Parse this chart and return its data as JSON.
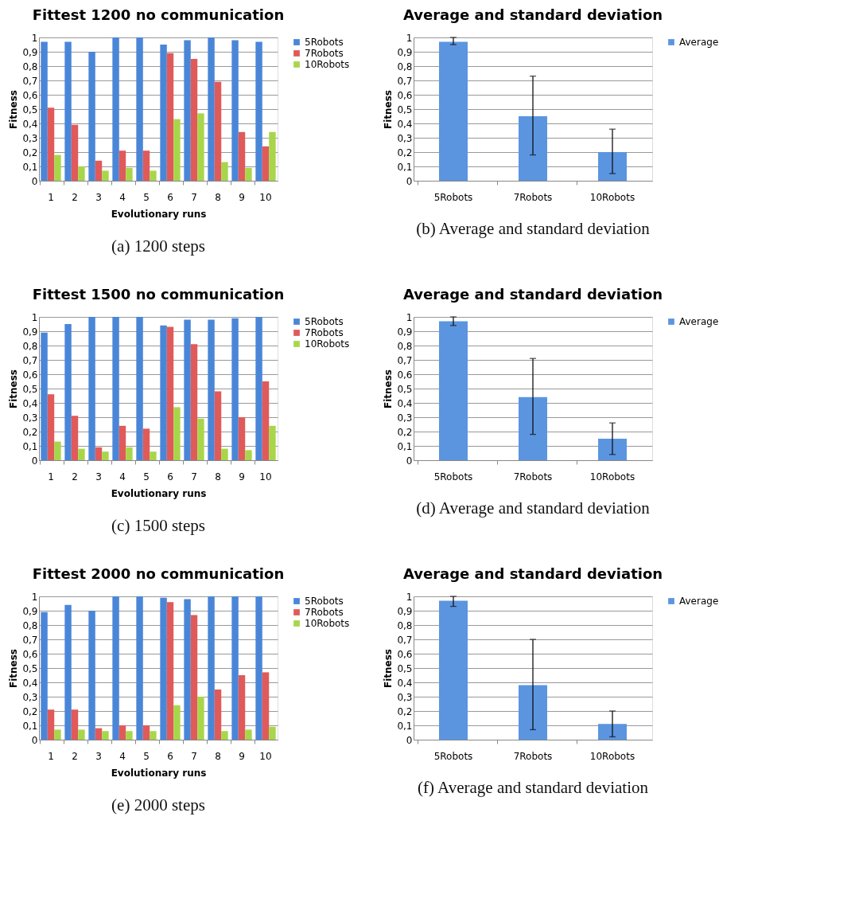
{
  "chart_data": [
    {
      "type": "bar",
      "title": "Fittest 1200 no communication",
      "xlabel": "Evolutionary runs",
      "ylabel": "Fitness",
      "categories": [
        "1",
        "2",
        "3",
        "4",
        "5",
        "6",
        "7",
        "8",
        "9",
        "10"
      ],
      "series": [
        {
          "name": "5Robots",
          "color": "#4a86d8",
          "values": [
            0.97,
            0.97,
            0.9,
            1.0,
            1.0,
            0.95,
            0.98,
            1.0,
            0.98,
            0.97
          ]
        },
        {
          "name": "7Robots",
          "color": "#e05a5a",
          "values": [
            0.51,
            0.39,
            0.14,
            0.21,
            0.21,
            0.89,
            0.85,
            0.69,
            0.34,
            0.24
          ]
        },
        {
          "name": "10Robots",
          "color": "#a8d64a",
          "values": [
            0.18,
            0.1,
            0.07,
            0.09,
            0.07,
            0.43,
            0.47,
            0.13,
            0.09,
            0.34
          ]
        }
      ],
      "ylim": [
        0,
        1
      ],
      "yticks": [
        0,
        {
          "value": 0.1,
          "label": "0,1"
        },
        {
          "value": 0.2,
          "label": "0,2"
        },
        {
          "value": 0.3,
          "label": "0,3"
        },
        {
          "value": 0.4,
          "label": "0,4"
        },
        {
          "value": 0.5,
          "label": "0,5"
        },
        {
          "value": 0.6,
          "label": "0,6"
        },
        {
          "value": 0.7,
          "label": "0,7"
        },
        {
          "value": 0.8,
          "label": "0,8"
        },
        {
          "value": 0.9,
          "label": "0,9"
        },
        1
      ],
      "grid": "y",
      "legend": "right",
      "annotations": [
        "(a)  1200 steps"
      ]
    },
    {
      "type": "bar",
      "title": "Average and standard deviation",
      "ylabel": "Fitness",
      "categories": [
        "5Robots",
        "7Robots",
        "10Robots"
      ],
      "series": [
        {
          "name": "Average",
          "color": "#5b95e0",
          "values": [
            0.97,
            0.45,
            0.2
          ],
          "errors": [
            [
              0.95,
              1.0
            ],
            [
              0.18,
              0.73
            ],
            [
              0.05,
              0.36
            ]
          ]
        }
      ],
      "ylim": [
        0,
        1
      ],
      "yticks": [
        0,
        {
          "value": 0.1,
          "label": "0,1"
        },
        {
          "value": 0.2,
          "label": "0,2"
        },
        {
          "value": 0.3,
          "label": "0,3"
        },
        {
          "value": 0.4,
          "label": "0,4"
        },
        {
          "value": 0.5,
          "label": "0,5"
        },
        {
          "value": 0.6,
          "label": "0,6"
        },
        {
          "value": 0.7,
          "label": "0,7"
        },
        {
          "value": 0.8,
          "label": "0,8"
        },
        {
          "value": 0.9,
          "label": "0,9"
        },
        1
      ],
      "grid": "y",
      "legend": "right",
      "annotations": [
        "(b)  Average and standard deviation"
      ]
    },
    {
      "type": "bar",
      "title": "Fittest 1500 no communication",
      "xlabel": "Evolutionary runs",
      "ylabel": "Fitness",
      "categories": [
        "1",
        "2",
        "3",
        "4",
        "5",
        "6",
        "7",
        "8",
        "9",
        "10"
      ],
      "series": [
        {
          "name": "5Robots",
          "color": "#4a86d8",
          "values": [
            0.89,
            0.95,
            1.0,
            1.0,
            1.0,
            0.94,
            0.98,
            0.98,
            0.99,
            1.0
          ]
        },
        {
          "name": "7Robots",
          "color": "#e05a5a",
          "values": [
            0.46,
            0.31,
            0.09,
            0.24,
            0.22,
            0.93,
            0.81,
            0.48,
            0.3,
            0.55
          ]
        },
        {
          "name": "10Robots",
          "color": "#a8d64a",
          "values": [
            0.13,
            0.08,
            0.06,
            0.09,
            0.06,
            0.37,
            0.29,
            0.08,
            0.07,
            0.24
          ]
        }
      ],
      "ylim": [
        0,
        1
      ],
      "yticks": [
        0,
        {
          "value": 0.1,
          "label": "0,1"
        },
        {
          "value": 0.2,
          "label": "0,2"
        },
        {
          "value": 0.3,
          "label": "0,3"
        },
        {
          "value": 0.4,
          "label": "0,4"
        },
        {
          "value": 0.5,
          "label": "0,5"
        },
        {
          "value": 0.6,
          "label": "0,6"
        },
        {
          "value": 0.7,
          "label": "0,7"
        },
        {
          "value": 0.8,
          "label": "0,8"
        },
        {
          "value": 0.9,
          "label": "0,9"
        },
        1
      ],
      "grid": "y",
      "legend": "right",
      "annotations": [
        "(c)  1500 steps"
      ]
    },
    {
      "type": "bar",
      "title": "Average and standard deviation",
      "ylabel": "Fitness",
      "categories": [
        "5Robots",
        "7Robots",
        "10Robots"
      ],
      "series": [
        {
          "name": "Average",
          "color": "#5b95e0",
          "values": [
            0.97,
            0.44,
            0.15
          ],
          "errors": [
            [
              0.94,
              1.0
            ],
            [
              0.18,
              0.71
            ],
            [
              0.04,
              0.26
            ]
          ]
        }
      ],
      "ylim": [
        0,
        1
      ],
      "yticks": [
        0,
        {
          "value": 0.1,
          "label": "0,1"
        },
        {
          "value": 0.2,
          "label": "0,2"
        },
        {
          "value": 0.3,
          "label": "0,3"
        },
        {
          "value": 0.4,
          "label": "0,4"
        },
        {
          "value": 0.5,
          "label": "0,5"
        },
        {
          "value": 0.6,
          "label": "0,6"
        },
        {
          "value": 0.7,
          "label": "0,7"
        },
        {
          "value": 0.8,
          "label": "0,8"
        },
        {
          "value": 0.9,
          "label": "0,9"
        },
        1
      ],
      "grid": "y",
      "legend": "right",
      "annotations": [
        "(d)  Average and standard deviation"
      ]
    },
    {
      "type": "bar",
      "title": "Fittest 2000 no communication",
      "xlabel": "Evolutionary runs",
      "ylabel": "Fitness",
      "categories": [
        "1",
        "2",
        "3",
        "4",
        "5",
        "6",
        "7",
        "8",
        "9",
        "10"
      ],
      "series": [
        {
          "name": "5Robots",
          "color": "#4a86d8",
          "values": [
            0.89,
            0.94,
            0.9,
            1.0,
            1.0,
            0.99,
            0.98,
            1.0,
            1.0,
            1.0
          ]
        },
        {
          "name": "7Robots",
          "color": "#e05a5a",
          "values": [
            0.21,
            0.21,
            0.08,
            0.1,
            0.1,
            0.96,
            0.87,
            0.35,
            0.45,
            0.47
          ]
        },
        {
          "name": "10Robots",
          "color": "#a8d64a",
          "values": [
            0.07,
            0.07,
            0.06,
            0.06,
            0.06,
            0.24,
            0.3,
            0.06,
            0.07,
            0.09
          ]
        }
      ],
      "ylim": [
        0,
        1
      ],
      "yticks": [
        0,
        {
          "value": 0.1,
          "label": "0,1"
        },
        {
          "value": 0.2,
          "label": "0,2"
        },
        {
          "value": 0.3,
          "label": "0,3"
        },
        {
          "value": 0.4,
          "label": "0,4"
        },
        {
          "value": 0.5,
          "label": "0,5"
        },
        {
          "value": 0.6,
          "label": "0,6"
        },
        {
          "value": 0.7,
          "label": "0,7"
        },
        {
          "value": 0.8,
          "label": "0,8"
        },
        {
          "value": 0.9,
          "label": "0,9"
        },
        1
      ],
      "grid": "y",
      "legend": "right",
      "annotations": [
        "(e)  2000 steps"
      ]
    },
    {
      "type": "bar",
      "title": "Average and standard deviation",
      "ylabel": "Fitness",
      "categories": [
        "5Robots",
        "7Robots",
        "10Robots"
      ],
      "series": [
        {
          "name": "Average",
          "color": "#5b95e0",
          "values": [
            0.97,
            0.38,
            0.11
          ],
          "errors": [
            [
              0.93,
              1.0
            ],
            [
              0.07,
              0.7
            ],
            [
              0.02,
              0.2
            ]
          ]
        }
      ],
      "ylim": [
        0,
        1
      ],
      "yticks": [
        0,
        {
          "value": 0.1,
          "label": "0,1"
        },
        {
          "value": 0.2,
          "label": "0,2"
        },
        {
          "value": 0.3,
          "label": "0,3"
        },
        {
          "value": 0.4,
          "label": "0,4"
        },
        {
          "value": 0.5,
          "label": "0,5"
        },
        {
          "value": 0.6,
          "label": "0,6"
        },
        {
          "value": 0.7,
          "label": "0,7"
        },
        {
          "value": 0.8,
          "label": "0,8"
        },
        {
          "value": 0.9,
          "label": "0,9"
        },
        1
      ],
      "grid": "y",
      "legend": "right",
      "annotations": [
        "(f)  Average and standard deviation"
      ]
    }
  ]
}
